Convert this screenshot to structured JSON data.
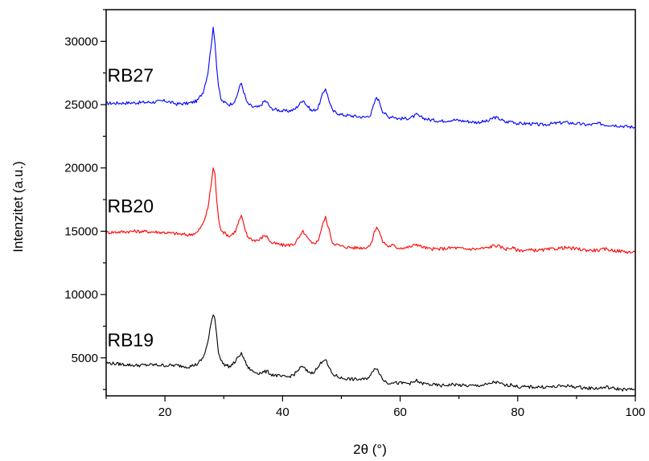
{
  "chart_data": {
    "type": "line",
    "xlabel": "2θ (°)",
    "ylabel": "Intenzitet (a.u.)",
    "xlim": [
      10,
      100
    ],
    "ylim": [
      2000,
      32500
    ],
    "x_ticks": [
      20,
      40,
      60,
      80,
      100
    ],
    "x_tick_labels": [
      "20",
      "40",
      "60",
      "80",
      "100"
    ],
    "y_ticks": [
      5000,
      10000,
      15000,
      20000,
      25000,
      30000
    ],
    "y_tick_labels": [
      "5000",
      "10000",
      "15000",
      "20000",
      "25000",
      "30000"
    ],
    "grid": false,
    "series": [
      {
        "name": "RB27",
        "color": "#0000ff",
        "x": [
          10,
          15,
          18,
          20,
          22,
          24,
          25.5,
          26.5,
          27.3,
          27.8,
          28.2,
          28.5,
          28.8,
          29.1,
          29.5,
          30,
          31,
          32,
          32.6,
          33,
          33.4,
          34,
          35,
          36,
          37,
          37.5,
          38,
          39,
          40,
          41,
          42,
          43,
          43.5,
          44,
          45,
          46,
          46.8,
          47.3,
          47.8,
          48.5,
          50,
          52,
          54,
          55,
          55.6,
          56,
          56.5,
          57,
          58,
          58.7,
          59.5,
          61,
          62,
          62.8,
          63.5,
          65,
          67,
          69,
          71,
          73,
          75,
          76,
          76.8,
          78,
          79,
          80,
          82,
          84,
          86,
          88,
          90,
          92,
          94,
          95,
          96,
          98,
          100
        ],
        "values": [
          25100,
          25150,
          25200,
          25300,
          25050,
          25100,
          25300,
          26000,
          27500,
          29500,
          31000,
          30000,
          28000,
          26500,
          25400,
          25200,
          25000,
          25300,
          26300,
          26700,
          26000,
          25100,
          24800,
          24800,
          25300,
          25100,
          24700,
          24600,
          24500,
          24500,
          24600,
          25100,
          25400,
          25000,
          24500,
          24700,
          25800,
          26300,
          25500,
          24500,
          24200,
          24100,
          24000,
          24200,
          25100,
          25600,
          25200,
          24500,
          24000,
          24100,
          23900,
          23900,
          24000,
          24200,
          24000,
          23800,
          23700,
          23800,
          23700,
          23600,
          23700,
          24000,
          23900,
          23600,
          23700,
          23500,
          23500,
          23400,
          23500,
          23600,
          23500,
          23400,
          23500,
          23400,
          23400,
          23300,
          23200
        ]
      },
      {
        "name": "RB20",
        "color": "#ff0000",
        "x": [
          10,
          15,
          18,
          20,
          22,
          24,
          25.5,
          26.5,
          27.3,
          27.8,
          28.2,
          28.5,
          28.8,
          29.1,
          29.5,
          30,
          31,
          32,
          32.6,
          33,
          33.4,
          34,
          35,
          36,
          37,
          37.5,
          38,
          39,
          40,
          41,
          42,
          43,
          43.5,
          44,
          45,
          46,
          46.8,
          47.3,
          47.8,
          48.5,
          50,
          52,
          54,
          55,
          55.6,
          56,
          56.5,
          57,
          58,
          58.7,
          59.5,
          61,
          62,
          62.8,
          63.5,
          65,
          67,
          69,
          71,
          73,
          75,
          76,
          76.8,
          78,
          79,
          80,
          82,
          84,
          86,
          88,
          90,
          92,
          94,
          95,
          96,
          98,
          100
        ],
        "values": [
          14900,
          15000,
          14950,
          14900,
          14800,
          14700,
          14900,
          15600,
          16800,
          18500,
          20000,
          19500,
          17500,
          16000,
          15200,
          14900,
          14600,
          15000,
          15800,
          16200,
          15500,
          14600,
          14300,
          14300,
          14700,
          14500,
          14100,
          14000,
          13900,
          13900,
          14000,
          14600,
          15000,
          14600,
          14000,
          14200,
          15500,
          16100,
          15300,
          14100,
          13800,
          13700,
          13700,
          13900,
          14900,
          15400,
          14900,
          14200,
          13800,
          13900,
          13700,
          13700,
          13800,
          14000,
          13800,
          13600,
          13600,
          13700,
          13600,
          13600,
          13700,
          13900,
          13800,
          13600,
          13700,
          13500,
          13500,
          13500,
          13600,
          13700,
          13600,
          13500,
          13500,
          13600,
          13500,
          13400,
          13300
        ]
      },
      {
        "name": "RB19",
        "color": "#000000",
        "x": [
          10,
          15,
          18,
          20,
          22,
          24,
          25.5,
          26.5,
          27.3,
          27.8,
          28.2,
          28.5,
          28.8,
          29.1,
          29.5,
          30,
          31,
          32,
          32.6,
          33,
          33.4,
          34,
          35,
          36,
          37,
          37.5,
          38,
          39,
          40,
          41,
          42,
          43,
          43.5,
          44,
          45,
          46,
          46.8,
          47.3,
          47.8,
          48.5,
          50,
          52,
          54,
          55,
          55.6,
          56,
          56.5,
          57,
          58,
          58.7,
          59.5,
          61,
          62,
          62.8,
          63.5,
          65,
          67,
          69,
          71,
          73,
          75,
          76,
          76.8,
          78,
          79,
          80,
          82,
          84,
          86,
          88,
          90,
          92,
          94,
          95,
          96,
          98,
          100
        ],
        "values": [
          4600,
          4400,
          4450,
          4400,
          4400,
          4300,
          4500,
          5000,
          6200,
          7600,
          8500,
          8100,
          6800,
          5500,
          4800,
          4500,
          4300,
          4700,
          5200,
          5300,
          5000,
          4300,
          3900,
          3800,
          3900,
          3900,
          3700,
          3600,
          3500,
          3500,
          3700,
          4200,
          4300,
          4000,
          3800,
          4200,
          4800,
          4900,
          4300,
          3700,
          3400,
          3300,
          3300,
          3600,
          4200,
          4200,
          3800,
          3300,
          3000,
          3100,
          3000,
          3000,
          3000,
          3200,
          3000,
          2900,
          2800,
          2900,
          2800,
          2800,
          2900,
          3100,
          3000,
          2800,
          2900,
          2700,
          2700,
          2700,
          2700,
          2800,
          2700,
          2600,
          2600,
          2700,
          2600,
          2500,
          2500
        ]
      }
    ],
    "annotations": [
      {
        "text": "RB27",
        "x": 10.2,
        "y": 26800
      },
      {
        "text": "RB20",
        "x": 10.2,
        "y": 16500
      },
      {
        "text": "RB19",
        "x": 10.2,
        "y": 5900
      }
    ]
  }
}
